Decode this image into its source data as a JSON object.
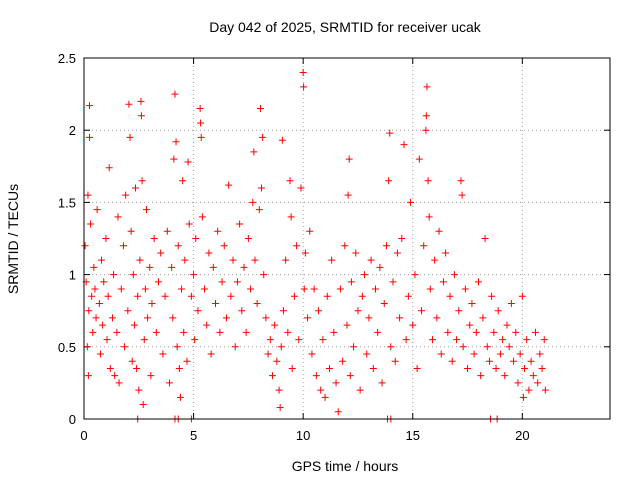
{
  "chart_data": {
    "type": "scatter",
    "title": "Day 042 of 2025, SRMTID for receiver ucak",
    "xlabel": "GPS time / hours",
    "ylabel": "SRMTID / TECUs",
    "xlim": [
      0,
      24
    ],
    "ylim": [
      0,
      2.5
    ],
    "xticks": [
      "0",
      "5",
      "10",
      "15",
      "20"
    ],
    "xtick_values": [
      0,
      5,
      10,
      15,
      20
    ],
    "yticks": [
      "0",
      "0.5",
      "1",
      "1.5",
      "2",
      "2.5"
    ],
    "ytick_values": [
      0,
      0.5,
      1,
      1.5,
      2,
      2.5
    ],
    "grid": true,
    "marker": "+",
    "series_color": "#ff0000",
    "series": [
      {
        "name": "SRMTID",
        "points": [
          [
            0.05,
            1.2
          ],
          [
            0.1,
            0.95
          ],
          [
            0.15,
            0.5
          ],
          [
            0.18,
            1.55
          ],
          [
            0.2,
            0.3
          ],
          [
            0.22,
            0.75
          ],
          [
            0.25,
            2.17
          ],
          [
            0.25,
            1.95
          ],
          [
            0.3,
            1.35
          ],
          [
            0.35,
            0.85
          ],
          [
            0.4,
            0.6
          ],
          [
            0.45,
            1.05
          ],
          [
            0.5,
            0.9
          ],
          [
            0.55,
            0.7
          ],
          [
            0.6,
            1.45
          ],
          [
            0.7,
            0.8
          ],
          [
            0.75,
            0.45
          ],
          [
            0.8,
            1.1
          ],
          [
            0.85,
            0.65
          ],
          [
            0.9,
            0.95
          ],
          [
            1.0,
            1.25
          ],
          [
            1.05,
            0.55
          ],
          [
            1.1,
            0.85
          ],
          [
            1.15,
            1.74
          ],
          [
            1.2,
            0.35
          ],
          [
            1.3,
            0.7
          ],
          [
            1.35,
            1.0
          ],
          [
            1.4,
            0.3
          ],
          [
            1.5,
            0.6
          ],
          [
            1.55,
            1.4
          ],
          [
            1.6,
            0.25
          ],
          [
            1.7,
            0.9
          ],
          [
            1.8,
            1.2
          ],
          [
            1.85,
            0.5
          ],
          [
            1.9,
            1.55
          ],
          [
            2.0,
            0.75
          ],
          [
            2.05,
            2.18
          ],
          [
            2.1,
            1.95
          ],
          [
            2.15,
            1.3
          ],
          [
            2.2,
            0.4
          ],
          [
            2.25,
            1.0
          ],
          [
            2.3,
            0.65
          ],
          [
            2.35,
            1.6
          ],
          [
            2.4,
            0.35
          ],
          [
            2.45,
            0.85
          ],
          [
            2.5,
            0.2
          ],
          [
            2.55,
            1.1
          ],
          [
            2.6,
            2.2
          ],
          [
            2.62,
            2.1
          ],
          [
            2.65,
            1.65
          ],
          [
            2.7,
            0.1
          ],
          [
            2.75,
            0.55
          ],
          [
            2.8,
            0.9
          ],
          [
            2.85,
            1.45
          ],
          [
            2.9,
            0.7
          ],
          [
            3.0,
            1.05
          ],
          [
            3.05,
            0.3
          ],
          [
            3.1,
            0.8
          ],
          [
            3.2,
            1.25
          ],
          [
            3.3,
            0.6
          ],
          [
            3.4,
            0.95
          ],
          [
            3.5,
            1.15
          ],
          [
            3.6,
            0.45
          ],
          [
            3.7,
            0.85
          ],
          [
            3.8,
            1.3
          ],
          [
            3.9,
            0.25
          ],
          [
            4.0,
            1.05
          ],
          [
            4.05,
            0.7
          ],
          [
            4.1,
            1.8
          ],
          [
            4.15,
            2.25
          ],
          [
            4.2,
            1.92
          ],
          [
            4.25,
            0.5
          ],
          [
            4.3,
            1.2
          ],
          [
            4.35,
            0.35
          ],
          [
            4.4,
            0.15
          ],
          [
            4.45,
            0.9
          ],
          [
            4.5,
            1.65
          ],
          [
            4.55,
            0.6
          ],
          [
            4.6,
            1.1
          ],
          [
            4.7,
            0.4
          ],
          [
            4.75,
            1.78
          ],
          [
            4.8,
            1.35
          ],
          [
            4.9,
            0.85
          ],
          [
            5.0,
            1.0
          ],
          [
            5.05,
            0.55
          ],
          [
            5.1,
            1.25
          ],
          [
            5.2,
            0.75
          ],
          [
            5.3,
            2.15
          ],
          [
            5.32,
            2.05
          ],
          [
            5.35,
            1.95
          ],
          [
            5.4,
            1.4
          ],
          [
            5.5,
            0.9
          ],
          [
            5.6,
            0.65
          ],
          [
            5.7,
            1.15
          ],
          [
            5.8,
            0.45
          ],
          [
            5.9,
            1.05
          ],
          [
            6.0,
            0.8
          ],
          [
            6.1,
            1.3
          ],
          [
            6.2,
            0.6
          ],
          [
            6.3,
            0.95
          ],
          [
            6.4,
            1.2
          ],
          [
            6.5,
            0.7
          ],
          [
            6.6,
            1.62
          ],
          [
            6.7,
            0.85
          ],
          [
            6.8,
            1.1
          ],
          [
            6.9,
            0.5
          ],
          [
            7.0,
            0.95
          ],
          [
            7.1,
            1.35
          ],
          [
            7.2,
            0.75
          ],
          [
            7.3,
            1.05
          ],
          [
            7.4,
            0.6
          ],
          [
            7.5,
            1.25
          ],
          [
            7.6,
            0.9
          ],
          [
            7.7,
            1.5
          ],
          [
            7.75,
            1.85
          ],
          [
            7.8,
            1.1
          ],
          [
            7.9,
            0.8
          ],
          [
            8.0,
            1.45
          ],
          [
            8.05,
            2.15
          ],
          [
            8.1,
            1.6
          ],
          [
            8.15,
            1.95
          ],
          [
            8.2,
            1.0
          ],
          [
            8.3,
            0.7
          ],
          [
            8.4,
            0.45
          ],
          [
            8.5,
            0.55
          ],
          [
            8.6,
            0.3
          ],
          [
            8.7,
            0.65
          ],
          [
            8.8,
            0.4
          ],
          [
            8.9,
            0.2
          ],
          [
            8.95,
            0.08
          ],
          [
            9.0,
            0.5
          ],
          [
            9.05,
            1.93
          ],
          [
            9.1,
            0.75
          ],
          [
            9.2,
            1.1
          ],
          [
            9.3,
            0.6
          ],
          [
            9.4,
            1.65
          ],
          [
            9.45,
            1.4
          ],
          [
            9.5,
            0.35
          ],
          [
            9.6,
            0.85
          ],
          [
            9.7,
            1.2
          ],
          [
            9.8,
            0.55
          ],
          [
            9.9,
            1.6
          ],
          [
            10.0,
            2.4
          ],
          [
            10.02,
            2.3
          ],
          [
            10.05,
            0.9
          ],
          [
            10.1,
            1.15
          ],
          [
            10.2,
            0.7
          ],
          [
            10.3,
            1.3
          ],
          [
            10.4,
            0.45
          ],
          [
            10.5,
            0.9
          ],
          [
            10.6,
            0.3
          ],
          [
            10.7,
            0.75
          ],
          [
            10.8,
            0.2
          ],
          [
            10.9,
            0.55
          ],
          [
            11.0,
            0.15
          ],
          [
            11.1,
            0.85
          ],
          [
            11.2,
            0.35
          ],
          [
            11.3,
            1.1
          ],
          [
            11.4,
            0.6
          ],
          [
            11.5,
            0.25
          ],
          [
            11.6,
            0.05
          ],
          [
            11.7,
            0.9
          ],
          [
            11.8,
            0.4
          ],
          [
            11.9,
            1.2
          ],
          [
            12.0,
            0.65
          ],
          [
            12.05,
            1.55
          ],
          [
            12.1,
            1.8
          ],
          [
            12.15,
            0.3
          ],
          [
            12.2,
            0.95
          ],
          [
            12.3,
            0.5
          ],
          [
            12.4,
            1.15
          ],
          [
            12.5,
            0.75
          ],
          [
            12.6,
            0.2
          ],
          [
            12.7,
            0.85
          ],
          [
            12.8,
            1.0
          ],
          [
            12.9,
            0.45
          ],
          [
            13.0,
            0.7
          ],
          [
            13.1,
            1.1
          ],
          [
            13.2,
            0.35
          ],
          [
            13.3,
            0.9
          ],
          [
            13.4,
            0.6
          ],
          [
            13.5,
            1.05
          ],
          [
            13.6,
            0.25
          ],
          [
            13.7,
            0.8
          ],
          [
            13.8,
            1.2
          ],
          [
            13.9,
            1.65
          ],
          [
            13.95,
            1.98
          ],
          [
            14.0,
            0.5
          ],
          [
            14.1,
            0.95
          ],
          [
            14.2,
            0.4
          ],
          [
            14.3,
            1.15
          ],
          [
            14.4,
            0.7
          ],
          [
            14.5,
            1.25
          ],
          [
            14.6,
            1.9
          ],
          [
            14.7,
            0.55
          ],
          [
            14.8,
            0.85
          ],
          [
            14.9,
            1.5
          ],
          [
            15.0,
            0.65
          ],
          [
            15.1,
            1.0
          ],
          [
            15.2,
            0.35
          ],
          [
            15.3,
            1.8
          ],
          [
            15.4,
            0.75
          ],
          [
            15.5,
            1.2
          ],
          [
            15.6,
            2.0
          ],
          [
            15.62,
            2.1
          ],
          [
            15.65,
            2.3
          ],
          [
            15.7,
            1.65
          ],
          [
            15.75,
            1.4
          ],
          [
            15.8,
            0.9
          ],
          [
            15.9,
            0.55
          ],
          [
            16.0,
            1.1
          ],
          [
            16.1,
            0.7
          ],
          [
            16.2,
            1.3
          ],
          [
            16.3,
            0.45
          ],
          [
            16.4,
            0.95
          ],
          [
            16.5,
            1.15
          ],
          [
            16.6,
            0.6
          ],
          [
            16.7,
            0.85
          ],
          [
            16.8,
            0.4
          ],
          [
            16.9,
            1.0
          ],
          [
            17.0,
            0.55
          ],
          [
            17.1,
            0.75
          ],
          [
            17.2,
            1.65
          ],
          [
            17.25,
            1.55
          ],
          [
            17.3,
            0.5
          ],
          [
            17.4,
            0.9
          ],
          [
            17.5,
            0.35
          ],
          [
            17.6,
            0.65
          ],
          [
            17.7,
            0.8
          ],
          [
            17.8,
            0.45
          ],
          [
            17.9,
            0.6
          ],
          [
            18.0,
            0.95
          ],
          [
            18.1,
            0.3
          ],
          [
            18.2,
            0.7
          ],
          [
            18.3,
            1.25
          ],
          [
            18.4,
            0.5
          ],
          [
            18.5,
            0.4
          ],
          [
            18.6,
            0.85
          ],
          [
            18.7,
            0.6
          ],
          [
            18.8,
            0.35
          ],
          [
            18.9,
            0.75
          ],
          [
            19.0,
            0.45
          ],
          [
            19.1,
            0.55
          ],
          [
            19.2,
            0.3
          ],
          [
            19.3,
            0.65
          ],
          [
            19.4,
            0.5
          ],
          [
            19.5,
            0.8
          ],
          [
            19.6,
            0.4
          ],
          [
            19.7,
            0.6
          ],
          [
            19.8,
            0.25
          ],
          [
            19.9,
            0.45
          ],
          [
            20.0,
            0.85
          ],
          [
            20.05,
            0.15
          ],
          [
            20.1,
            0.35
          ],
          [
            20.2,
            0.55
          ],
          [
            20.3,
            0.2
          ],
          [
            20.4,
            0.4
          ],
          [
            20.5,
            0.3
          ],
          [
            20.6,
            0.6
          ],
          [
            20.7,
            0.25
          ],
          [
            20.8,
            0.45
          ],
          [
            20.9,
            0.35
          ],
          [
            21.0,
            0.55
          ],
          [
            21.05,
            0.2
          ],
          [
            2.45,
            0.0
          ],
          [
            4.15,
            0.0
          ],
          [
            4.3,
            0.0
          ],
          [
            4.9,
            0.0
          ],
          [
            13.85,
            0.0
          ],
          [
            14.0,
            0.0
          ],
          [
            18.55,
            0.0
          ],
          [
            18.85,
            0.0
          ]
        ]
      }
    ]
  }
}
